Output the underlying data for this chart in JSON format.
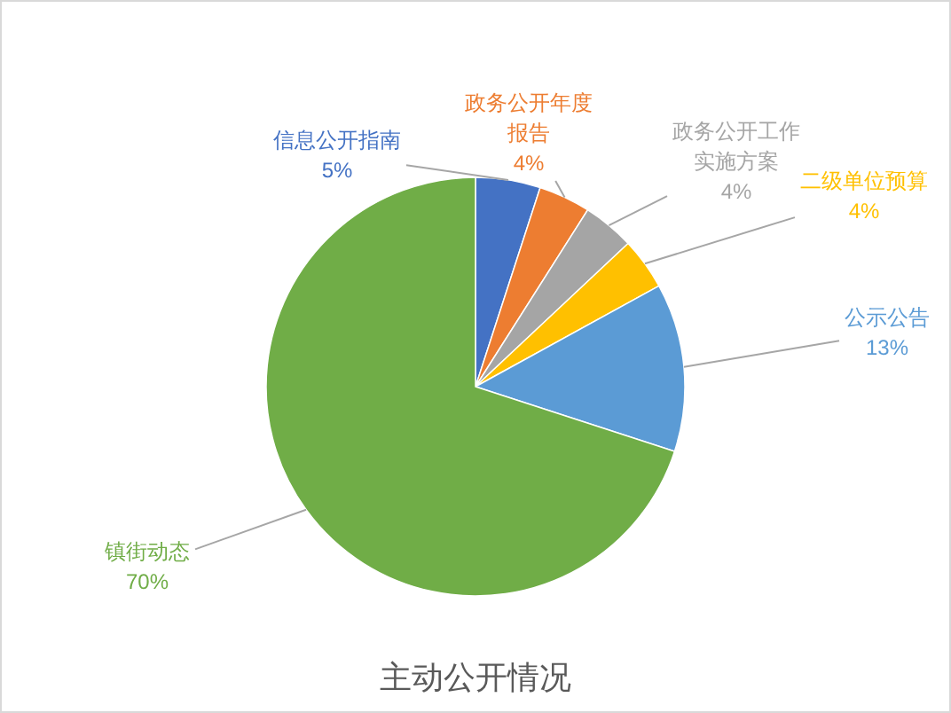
{
  "chart_data": {
    "type": "pie",
    "title": "主动公开情况",
    "categories": [
      "信息公开指南",
      "政务公开年度报告",
      "政务公开工作实施方案",
      "二级单位预算",
      "公示公告",
      "镇街动态"
    ],
    "values": [
      5,
      4,
      4,
      4,
      13,
      70
    ],
    "colors": [
      "#4472c4",
      "#ed7d31",
      "#a5a5a5",
      "#ffc000",
      "#5b9bd5",
      "#70ad47"
    ],
    "value_labels": [
      "5%",
      "4%",
      "4%",
      "4%",
      "13%",
      "70%"
    ]
  }
}
